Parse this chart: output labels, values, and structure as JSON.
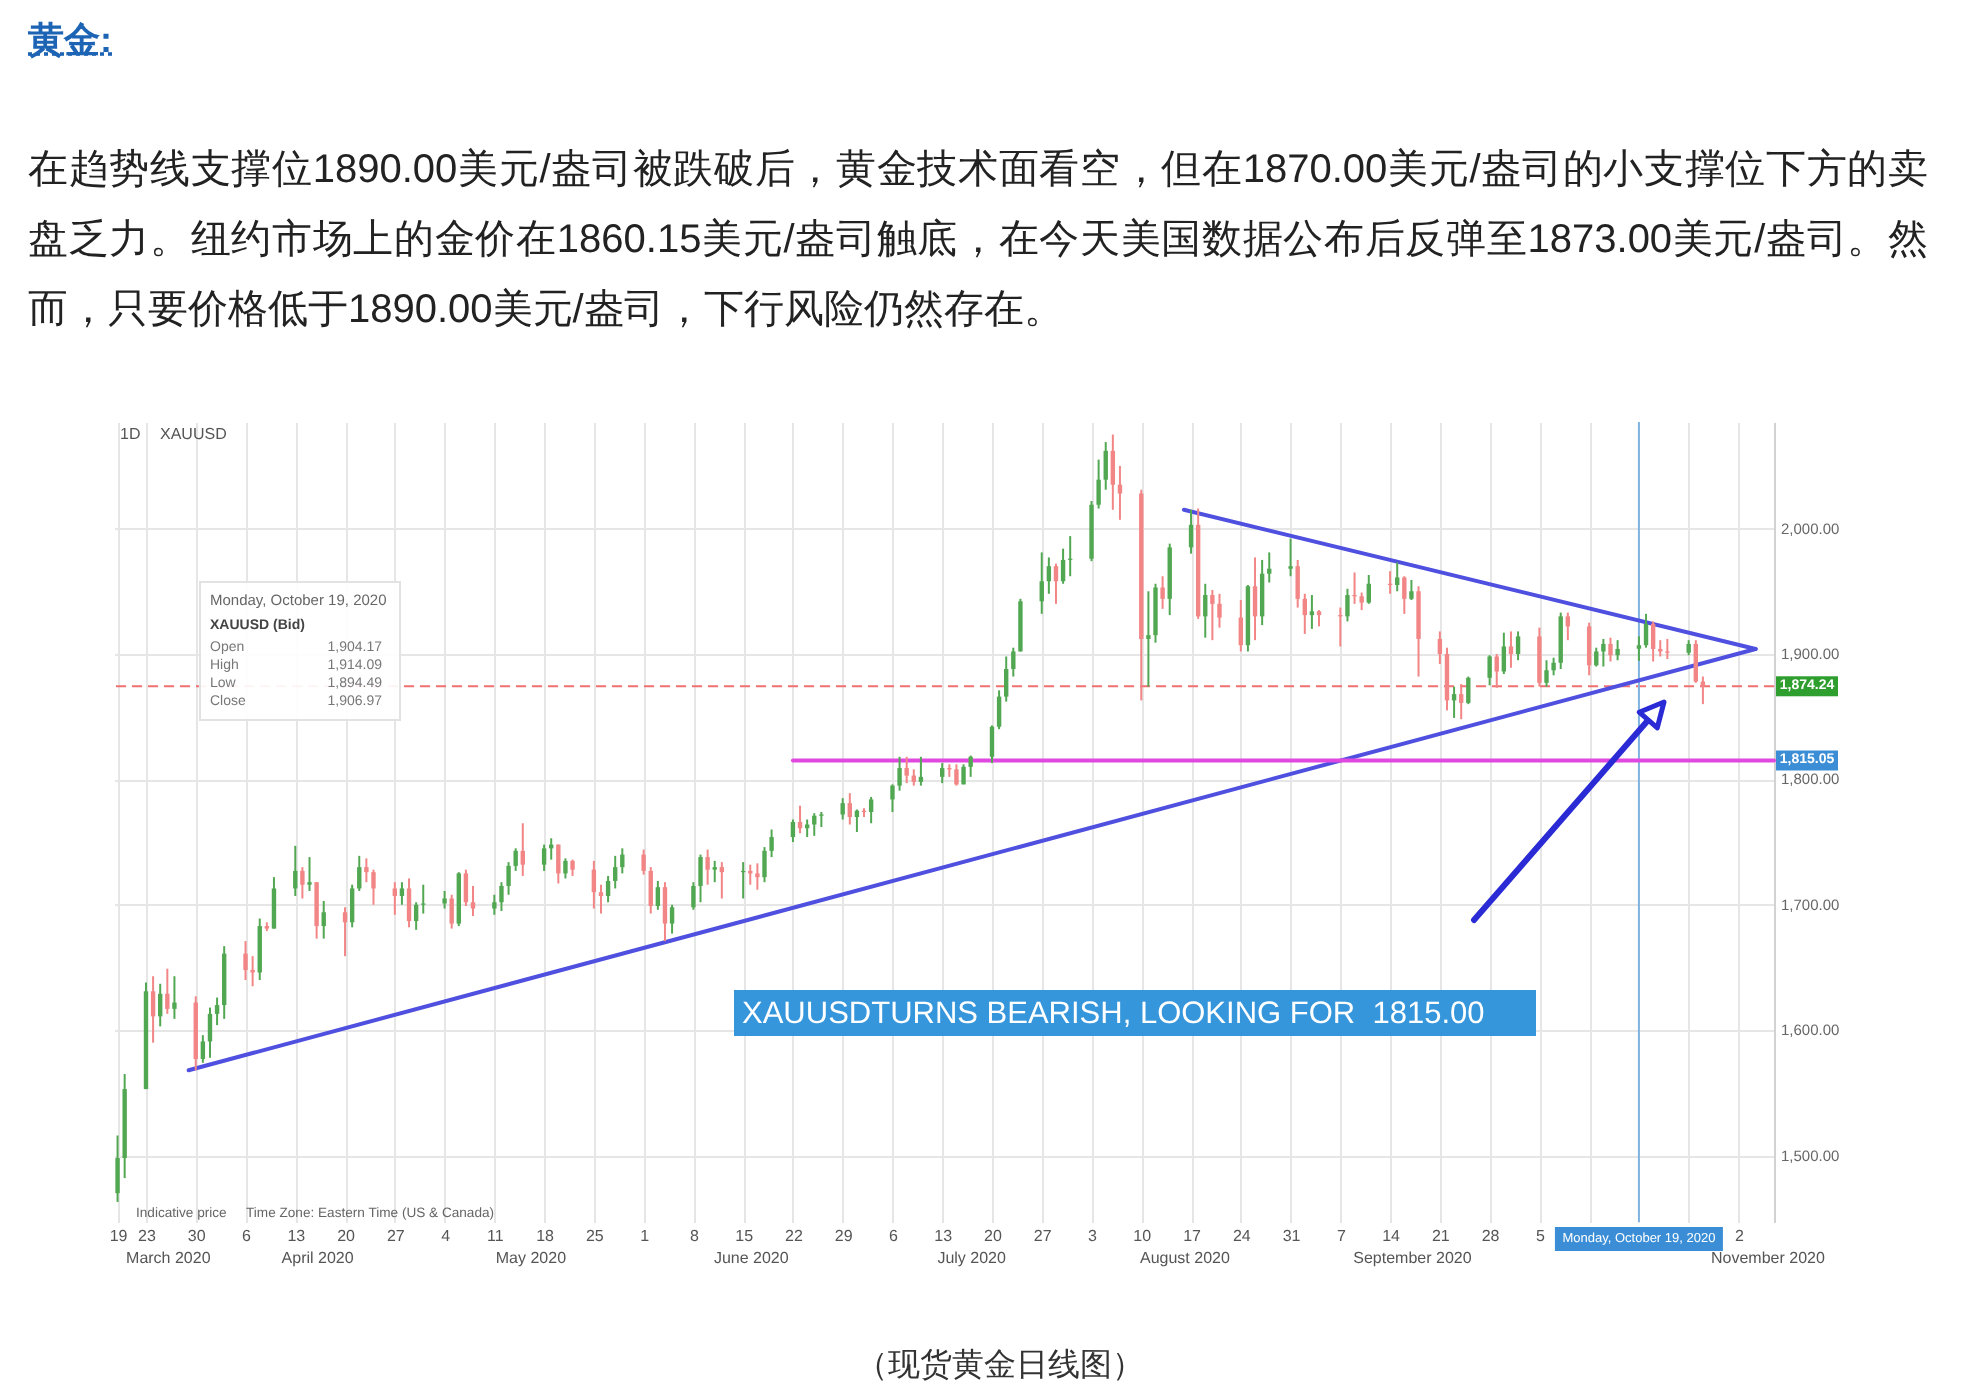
{
  "chart_data": {
    "type": "candlestick",
    "title": "黄金:",
    "subtitle": "在趋势线支撑位1890.00美元/盎司被跌破后，黄金技术面看空，但在1870.00美元/盎司的小支撑位下方的卖盘乏力。纽约市场上的金价在1860.15美元/盎司触底，在今天美国数据公布后反弹至1873.00美元/盎司。然而，只要价格低于1890.00美元/盎司，下行风险仍然存在。",
    "series": [
      {
        "x": [
          "2020-03-19",
          "2020-03-20",
          "2020-03-23",
          "2020-03-24",
          "2020-03-25",
          "2020-03-26",
          "2020-03-27",
          "2020-03-30",
          "2020-03-31",
          "2020-04-01",
          "2020-04-02",
          "2020-04-03",
          "2020-04-06",
          "2020-04-07",
          "2020-04-08",
          "2020-04-09",
          "2020-04-10",
          "2020-04-13",
          "2020-04-14",
          "2020-04-15",
          "2020-04-16",
          "2020-04-17",
          "2020-04-20",
          "2020-04-21",
          "2020-04-22",
          "2020-04-23",
          "2020-04-24",
          "2020-04-27",
          "2020-04-28",
          "2020-04-29",
          "2020-04-30",
          "2020-05-01",
          "2020-05-04",
          "2020-05-05",
          "2020-05-06",
          "2020-05-07",
          "2020-05-08",
          "2020-05-11",
          "2020-05-12",
          "2020-05-13",
          "2020-05-14",
          "2020-05-15",
          "2020-05-18",
          "2020-05-19",
          "2020-05-20",
          "2020-05-21",
          "2020-05-22",
          "2020-05-25",
          "2020-05-26",
          "2020-05-27",
          "2020-05-28",
          "2020-05-29",
          "2020-06-01",
          "2020-06-02",
          "2020-06-03",
          "2020-06-04",
          "2020-06-05",
          "2020-06-08",
          "2020-06-09",
          "2020-06-10",
          "2020-06-11",
          "2020-06-12",
          "2020-06-15",
          "2020-06-16",
          "2020-06-17",
          "2020-06-18",
          "2020-06-19",
          "2020-06-22",
          "2020-06-23",
          "2020-06-24",
          "2020-06-25",
          "2020-06-26",
          "2020-06-29",
          "2020-06-30",
          "2020-07-01",
          "2020-07-02",
          "2020-07-03",
          "2020-07-06",
          "2020-07-07",
          "2020-07-08",
          "2020-07-09",
          "2020-07-10",
          "2020-07-13",
          "2020-07-14",
          "2020-07-15",
          "2020-07-16",
          "2020-07-17",
          "2020-07-20",
          "2020-07-21",
          "2020-07-22",
          "2020-07-23",
          "2020-07-24",
          "2020-07-27",
          "2020-07-28",
          "2020-07-29",
          "2020-07-30",
          "2020-07-31",
          "2020-08-03",
          "2020-08-04",
          "2020-08-05",
          "2020-08-06",
          "2020-08-07",
          "2020-08-10",
          "2020-08-11",
          "2020-08-12",
          "2020-08-13",
          "2020-08-14",
          "2020-08-17",
          "2020-08-18",
          "2020-08-19",
          "2020-08-20",
          "2020-08-21",
          "2020-08-24",
          "2020-08-25",
          "2020-08-26",
          "2020-08-27",
          "2020-08-28",
          "2020-08-31",
          "2020-09-01",
          "2020-09-02",
          "2020-09-03",
          "2020-09-04",
          "2020-09-07",
          "2020-09-08",
          "2020-09-09",
          "2020-09-10",
          "2020-09-11",
          "2020-09-14",
          "2020-09-15",
          "2020-09-16",
          "2020-09-17",
          "2020-09-18",
          "2020-09-21",
          "2020-09-22",
          "2020-09-23",
          "2020-09-24",
          "2020-09-25",
          "2020-09-28",
          "2020-09-29",
          "2020-09-30",
          "2020-10-01",
          "2020-10-02",
          "2020-10-05",
          "2020-10-06",
          "2020-10-07",
          "2020-10-08",
          "2020-10-09",
          "2020-10-12",
          "2020-10-13",
          "2020-10-14",
          "2020-10-15",
          "2020-10-16",
          "2020-10-19",
          "2020-10-20",
          "2020-10-21",
          "2020-10-22",
          "2020-10-23",
          "2020-10-26",
          "2020-10-27",
          "2020-10-28"
        ],
        "ohlc": [
          [
            1470,
            1516,
            1463,
            1498
          ],
          [
            1498,
            1565,
            1482,
            1553
          ],
          [
            1553,
            1638,
            1553,
            1631
          ],
          [
            1631,
            1643,
            1590,
            1611
          ],
          [
            1611,
            1637,
            1603,
            1629
          ],
          [
            1629,
            1649,
            1613,
            1617
          ],
          [
            1617,
            1643,
            1609,
            1622
          ],
          [
            1622,
            1627,
            1568,
            1577
          ],
          [
            1577,
            1596,
            1574,
            1591
          ],
          [
            1591,
            1618,
            1578,
            1613
          ],
          [
            1613,
            1626,
            1604,
            1620
          ],
          [
            1620,
            1667,
            1609,
            1661
          ],
          [
            1661,
            1671,
            1640,
            1648
          ],
          [
            1648,
            1659,
            1635,
            1646
          ],
          [
            1646,
            1689,
            1640,
            1683
          ],
          [
            1683,
            1686,
            1679,
            1681
          ],
          [
            1681,
            1722,
            1681,
            1713
          ],
          [
            1713,
            1747,
            1707,
            1727
          ],
          [
            1727,
            1730,
            1705,
            1716
          ],
          [
            1716,
            1738,
            1711,
            1718
          ],
          [
            1718,
            1718,
            1673,
            1683
          ],
          [
            1683,
            1703,
            1673,
            1694
          ],
          [
            1694,
            1698,
            1659,
            1686
          ],
          [
            1686,
            1716,
            1682,
            1713
          ],
          [
            1713,
            1739,
            1711,
            1730
          ],
          [
            1730,
            1737,
            1718,
            1726
          ],
          [
            1726,
            1728,
            1700,
            1713
          ],
          [
            1713,
            1718,
            1692,
            1707
          ],
          [
            1707,
            1718,
            1700,
            1713
          ],
          [
            1713,
            1721,
            1682,
            1687
          ],
          [
            1687,
            1702,
            1680,
            1700
          ],
          [
            1700,
            1716,
            1693,
            1701
          ],
          [
            1701,
            1711,
            1697,
            1705
          ],
          [
            1705,
            1708,
            1681,
            1685
          ],
          [
            1685,
            1726,
            1683,
            1725
          ],
          [
            1725,
            1728,
            1699,
            1702
          ],
          [
            1702,
            1715,
            1691,
            1697
          ],
          [
            1697,
            1708,
            1692,
            1702
          ],
          [
            1702,
            1718,
            1695,
            1715
          ],
          [
            1715,
            1734,
            1708,
            1731
          ],
          [
            1731,
            1745,
            1727,
            1743
          ],
          [
            1743,
            1765,
            1723,
            1732
          ],
          [
            1732,
            1748,
            1727,
            1745
          ],
          [
            1745,
            1753,
            1736,
            1748
          ],
          [
            1748,
            1748,
            1717,
            1725
          ],
          [
            1725,
            1737,
            1721,
            1735
          ],
          [
            1735,
            1736,
            1723,
            1728
          ],
          [
            1728,
            1735,
            1697,
            1710
          ],
          [
            1710,
            1716,
            1693,
            1707
          ],
          [
            1707,
            1723,
            1702,
            1719
          ],
          [
            1719,
            1739,
            1713,
            1730
          ],
          [
            1730,
            1745,
            1725,
            1740
          ],
          [
            1740,
            1744,
            1724,
            1727
          ],
          [
            1727,
            1730,
            1693,
            1699
          ],
          [
            1699,
            1719,
            1696,
            1714
          ],
          [
            1714,
            1718,
            1671,
            1685
          ],
          [
            1685,
            1700,
            1677,
            1698
          ],
          [
            1698,
            1718,
            1696,
            1715
          ],
          [
            1715,
            1740,
            1702,
            1738
          ],
          [
            1738,
            1744,
            1716,
            1728
          ],
          [
            1728,
            1735,
            1718,
            1730
          ],
          [
            1730,
            1734,
            1705,
            1726
          ],
          [
            1726,
            1734,
            1705,
            1727
          ],
          [
            1727,
            1732,
            1716,
            1725
          ],
          [
            1725,
            1733,
            1712,
            1722
          ],
          [
            1722,
            1746,
            1718,
            1743
          ],
          [
            1743,
            1760,
            1738,
            1754
          ],
          [
            1754,
            1768,
            1750,
            1766
          ],
          [
            1766,
            1779,
            1757,
            1761
          ],
          [
            1761,
            1768,
            1754,
            1764
          ],
          [
            1764,
            1773,
            1755,
            1771
          ],
          [
            1771,
            1774,
            1762,
            1772
          ],
          [
            1772,
            1785,
            1768,
            1781
          ],
          [
            1781,
            1789,
            1764,
            1770
          ],
          [
            1770,
            1776,
            1758,
            1775
          ],
          [
            1775,
            1777,
            1770,
            1774
          ],
          [
            1774,
            1786,
            1765,
            1784
          ],
          [
            1784,
            1796,
            1774,
            1795
          ],
          [
            1795,
            1818,
            1791,
            1809
          ],
          [
            1809,
            1818,
            1797,
            1803
          ],
          [
            1803,
            1808,
            1795,
            1798
          ],
          [
            1798,
            1818,
            1795,
            1802
          ],
          [
            1802,
            1813,
            1797,
            1809
          ],
          [
            1809,
            1812,
            1802,
            1808
          ],
          [
            1808,
            1812,
            1795,
            1796
          ],
          [
            1796,
            1812,
            1796,
            1810
          ],
          [
            1810,
            1819,
            1802,
            1818
          ],
          [
            1818,
            1843,
            1813,
            1842
          ],
          [
            1842,
            1871,
            1840,
            1866
          ],
          [
            1866,
            1898,
            1862,
            1888
          ],
          [
            1888,
            1905,
            1882,
            1902
          ],
          [
            1902,
            1944,
            1902,
            1942
          ],
          [
            1942,
            1981,
            1932,
            1958
          ],
          [
            1958,
            1977,
            1948,
            1970
          ],
          [
            1970,
            1972,
            1940,
            1958
          ],
          [
            1958,
            1984,
            1956,
            1975
          ],
          [
            1975,
            1994,
            1962,
            1976
          ],
          [
            1976,
            2022,
            1974,
            2019
          ],
          [
            2019,
            2055,
            2016,
            2039
          ],
          [
            2039,
            2069,
            2031,
            2062
          ],
          [
            2062,
            2075,
            2015,
            2035
          ],
          [
            2035,
            2050,
            2007,
            2028
          ],
          [
            2028,
            2031,
            1863,
            1912
          ],
          [
            1912,
            1950,
            1874,
            1915
          ],
          [
            1915,
            1956,
            1909,
            1953
          ],
          [
            1953,
            1962,
            1936,
            1944
          ],
          [
            1944,
            1988,
            1931,
            1985
          ],
          [
            1985,
            2015,
            1980,
            2003
          ],
          [
            2003,
            2016,
            1928,
            1930
          ],
          [
            1930,
            1956,
            1913,
            1947
          ],
          [
            1947,
            1951,
            1911,
            1940
          ],
          [
            1940,
            1948,
            1921,
            1929
          ],
          [
            1929,
            1943,
            1902,
            1907
          ],
          [
            1907,
            1955,
            1902,
            1954
          ],
          [
            1954,
            1977,
            1911,
            1930
          ],
          [
            1930,
            1975,
            1923,
            1964
          ],
          [
            1964,
            1981,
            1957,
            1968
          ],
          [
            1968,
            1992,
            1962,
            1970
          ],
          [
            1970,
            1975,
            1937,
            1944
          ],
          [
            1944,
            1948,
            1916,
            1931
          ],
          [
            1931,
            1947,
            1920,
            1934
          ],
          [
            1934,
            1935,
            1922,
            1931
          ],
          [
            1931,
            1937,
            1906,
            1930
          ],
          [
            1930,
            1952,
            1926,
            1947
          ],
          [
            1947,
            1965,
            1940,
            1946
          ],
          [
            1946,
            1949,
            1935,
            1941
          ],
          [
            1941,
            1963,
            1940,
            1956
          ],
          [
            1956,
            1966,
            1948,
            1955
          ],
          [
            1955,
            1973,
            1950,
            1961
          ],
          [
            1961,
            1962,
            1932,
            1944
          ],
          [
            1944,
            1959,
            1943,
            1950
          ],
          [
            1950,
            1954,
            1882,
            1912
          ],
          [
            1912,
            1918,
            1892,
            1900
          ],
          [
            1900,
            1905,
            1855,
            1863
          ],
          [
            1863,
            1874,
            1849,
            1868
          ],
          [
            1868,
            1876,
            1848,
            1861
          ],
          [
            1861,
            1882,
            1860,
            1881
          ],
          [
            1881,
            1899,
            1875,
            1898
          ],
          [
            1898,
            1900,
            1873,
            1886
          ],
          [
            1886,
            1917,
            1884,
            1906
          ],
          [
            1906,
            1918,
            1889,
            1900
          ],
          [
            1900,
            1918,
            1895,
            1914
          ],
          [
            1914,
            1921,
            1874,
            1877
          ],
          [
            1877,
            1895,
            1874,
            1887
          ],
          [
            1887,
            1897,
            1883,
            1893
          ],
          [
            1893,
            1933,
            1888,
            1930
          ],
          [
            1930,
            1933,
            1911,
            1922
          ],
          [
            1922,
            1925,
            1883,
            1891
          ],
          [
            1891,
            1905,
            1890,
            1902
          ],
          [
            1902,
            1912,
            1890,
            1908
          ],
          [
            1908,
            1913,
            1894,
            1899
          ],
          [
            1899,
            1911,
            1895,
            1904
          ],
          [
            1904.17,
            1914.09,
            1894.49,
            1906.97
          ],
          [
            1907,
            1932,
            1905,
            1924
          ],
          [
            1924,
            1926,
            1894,
            1904
          ],
          [
            1904,
            1911,
            1898,
            1902
          ],
          [
            1902,
            1912,
            1896,
            1901
          ],
          [
            1901,
            1911,
            1899,
            1908
          ],
          [
            1908,
            1911,
            1877,
            1878
          ],
          [
            1878,
            1882,
            1860,
            1874.24
          ]
        ],
        "colors": [
          "#52a852",
          "#52a852",
          "#52a852",
          "#f28585",
          "#52a852",
          "#f28585",
          "#52a852",
          "#f28585",
          "#52a852",
          "#52a852",
          "#52a852",
          "#52a852",
          "#f28585",
          "#f28585",
          "#52a852",
          "#f28585",
          "#52a852",
          "#52a852",
          "#f28585",
          "#52a852",
          "#f28585",
          "#52a852",
          "#f28585",
          "#52a852",
          "#52a852",
          "#f28585",
          "#f28585",
          "#f28585",
          "#52a852",
          "#f28585",
          "#52a852",
          "#52a852",
          "#52a852",
          "#f28585",
          "#52a852",
          "#f28585",
          "#f28585",
          "#52a852",
          "#52a852",
          "#52a852",
          "#52a852",
          "#f28585",
          "#52a852",
          "#52a852",
          "#f28585",
          "#52a852",
          "#f28585",
          "#f28585",
          "#f28585",
          "#52a852",
          "#52a852",
          "#52a852",
          "#f28585",
          "#f28585",
          "#52a852",
          "#f28585",
          "#52a852",
          "#52a852",
          "#52a852",
          "#f28585",
          "#52a852",
          "#f28585",
          "#52a852",
          "#f28585",
          "#f28585",
          "#52a852",
          "#52a852",
          "#52a852",
          "#f28585",
          "#52a852",
          "#52a852",
          "#52a852",
          "#52a852",
          "#f28585",
          "#52a852",
          "#f28585",
          "#52a852",
          "#52a852",
          "#52a852",
          "#f28585",
          "#f28585",
          "#52a852",
          "#52a852",
          "#f28585",
          "#f28585",
          "#52a852",
          "#52a852",
          "#52a852",
          "#52a852",
          "#52a852",
          "#52a852",
          "#52a852",
          "#52a852",
          "#52a852",
          "#f28585",
          "#52a852",
          "#52a852",
          "#52a852",
          "#52a852",
          "#52a852",
          "#f28585",
          "#f28585",
          "#f28585",
          "#52a852",
          "#52a852",
          "#f28585",
          "#52a852",
          "#52a852",
          "#f28585",
          "#52a852",
          "#f28585",
          "#f28585",
          "#f28585",
          "#52a852",
          "#f28585",
          "#52a852",
          "#52a852",
          "#52a852",
          "#f28585",
          "#f28585",
          "#52a852",
          "#f28585",
          "#f28585",
          "#52a852",
          "#f28585",
          "#f28585",
          "#52a852",
          "#f28585",
          "#52a852",
          "#f28585",
          "#52a852",
          "#f28585",
          "#f28585",
          "#f28585",
          "#52a852",
          "#f28585",
          "#52a852",
          "#52a852",
          "#f28585",
          "#52a852",
          "#f28585",
          "#52a852",
          "#f28585",
          "#52a852",
          "#52a852",
          "#52a852",
          "#f28585",
          "#f28585",
          "#52a852",
          "#52a852",
          "#f28585",
          "#52a852",
          "#52a852",
          "#52a852",
          "#f28585",
          "#f28585",
          "#f28585",
          "#52a852",
          "#f28585",
          "#f28585"
        ]
      },
      {
        "type": "line",
        "x": [
          "2020-03-29",
          "2020-11-04T10:00"
        ],
        "values": [
          1568,
          1904
        ],
        "color": "#5050e0"
      },
      {
        "type": "line",
        "x": [
          "2020-08-16",
          "2020-11-04T10:00"
        ],
        "values": [
          2015,
          1904
        ],
        "color": "#5050e0"
      },
      {
        "type": "line",
        "name": "1,815.05",
        "x": [
          "2020-06-22",
          "2020-11-07"
        ],
        "values": [
          1815.05,
          1815.05
        ],
        "color": "#e048e0"
      }
    ],
    "xlim": [
      "2020-03-18T12:00",
      "2020-11-07"
    ],
    "xticks": [
      {
        "value": "2020-03-19",
        "label": "19"
      },
      {
        "value": "2020-03-23",
        "label": "23"
      },
      {
        "value": "2020-03-30",
        "label": "30"
      },
      {
        "value": "2020-04-06",
        "label": "6"
      },
      {
        "value": "2020-04-13",
        "label": "13"
      },
      {
        "value": "2020-04-20",
        "label": "20"
      },
      {
        "value": "2020-04-27",
        "label": "27"
      },
      {
        "value": "2020-05-04",
        "label": "4"
      },
      {
        "value": "2020-05-11",
        "label": "11"
      },
      {
        "value": "2020-05-18",
        "label": "18"
      },
      {
        "value": "2020-05-25",
        "label": "25"
      },
      {
        "value": "2020-06-01",
        "label": "1"
      },
      {
        "value": "2020-06-08",
        "label": "8"
      },
      {
        "value": "2020-06-15",
        "label": "15"
      },
      {
        "value": "2020-06-22",
        "label": "22"
      },
      {
        "value": "2020-06-29",
        "label": "29"
      },
      {
        "value": "2020-07-06",
        "label": "6"
      },
      {
        "value": "2020-07-13",
        "label": "13"
      },
      {
        "value": "2020-07-20",
        "label": "20"
      },
      {
        "value": "2020-07-27",
        "label": "27"
      },
      {
        "value": "2020-08-03",
        "label": "3"
      },
      {
        "value": "2020-08-10",
        "label": "10"
      },
      {
        "value": "2020-08-17",
        "label": "17"
      },
      {
        "value": "2020-08-24",
        "label": "24"
      },
      {
        "value": "2020-08-31",
        "label": "31"
      },
      {
        "value": "2020-09-07",
        "label": "7"
      },
      {
        "value": "2020-09-14",
        "label": "14"
      },
      {
        "value": "2020-09-21",
        "label": "21"
      },
      {
        "value": "2020-09-28",
        "label": "28"
      },
      {
        "value": "2020-10-05",
        "label": "5"
      },
      {
        "value": "2020-10-12",
        "label": null
      },
      {
        "value": "2020-10-19",
        "label": null
      },
      {
        "value": "2020-10-26",
        "label": null
      },
      {
        "value": "2020-11-02",
        "label": "2"
      }
    ],
    "x2lim": [
      "2020-03-18T12:00",
      "2020-11-07"
    ],
    "x2ticks": [
      {
        "value": "2020-03-26",
        "label": "March 2020"
      },
      {
        "value": "2020-04-16",
        "label": "April 2020"
      },
      {
        "value": "2020-05-16",
        "label": "May 2020"
      },
      {
        "value": "2020-06-16",
        "label": "June 2020"
      },
      {
        "value": "2020-07-17",
        "label": "July 2020"
      },
      {
        "value": "2020-08-16",
        "label": "August 2020"
      },
      {
        "value": "2020-09-17",
        "label": "September 2020"
      },
      {
        "value": "2020-11-06",
        "label": "November 2020"
      }
    ],
    "ylim": [
      1447,
      2085
    ],
    "yticks": [
      {
        "value": 1500,
        "label": "1,500.00"
      },
      {
        "value": 1600,
        "label": "1,600.00"
      },
      {
        "value": 1700,
        "label": "1,700.00"
      },
      {
        "value": 1800,
        "label": "1,800.00"
      },
      {
        "value": 1900,
        "label": "1,900.00"
      },
      {
        "value": 2000,
        "label": "2,000.00"
      }
    ],
    "grid": true,
    "ref_lines": [
      {
        "axis": "y",
        "value": 1874.24,
        "label": "1,874.24",
        "color": "#f07070",
        "line_style": "dashed"
      },
      {
        "axis": "x",
        "value": "2020-10-19",
        "label": "Monday, October 19, 2020",
        "color": "#80b4e0"
      }
    ],
    "annotations": [
      "1D",
      "XAUUSD",
      "Monday, October 19, 2020",
      "XAUUSD (Bid)",
      "Open",
      "1,904.17",
      "High",
      "1,914.09",
      "Low",
      "1,894.49",
      "Close",
      "1,906.97",
      "Indicative price",
      "Time Zone: Eastern Time (US & Canada)",
      "XAUUSDTURNS BEARISH, LOOKING FOR  1815.00",
      "（现货黄金日线图）"
    ]
  }
}
